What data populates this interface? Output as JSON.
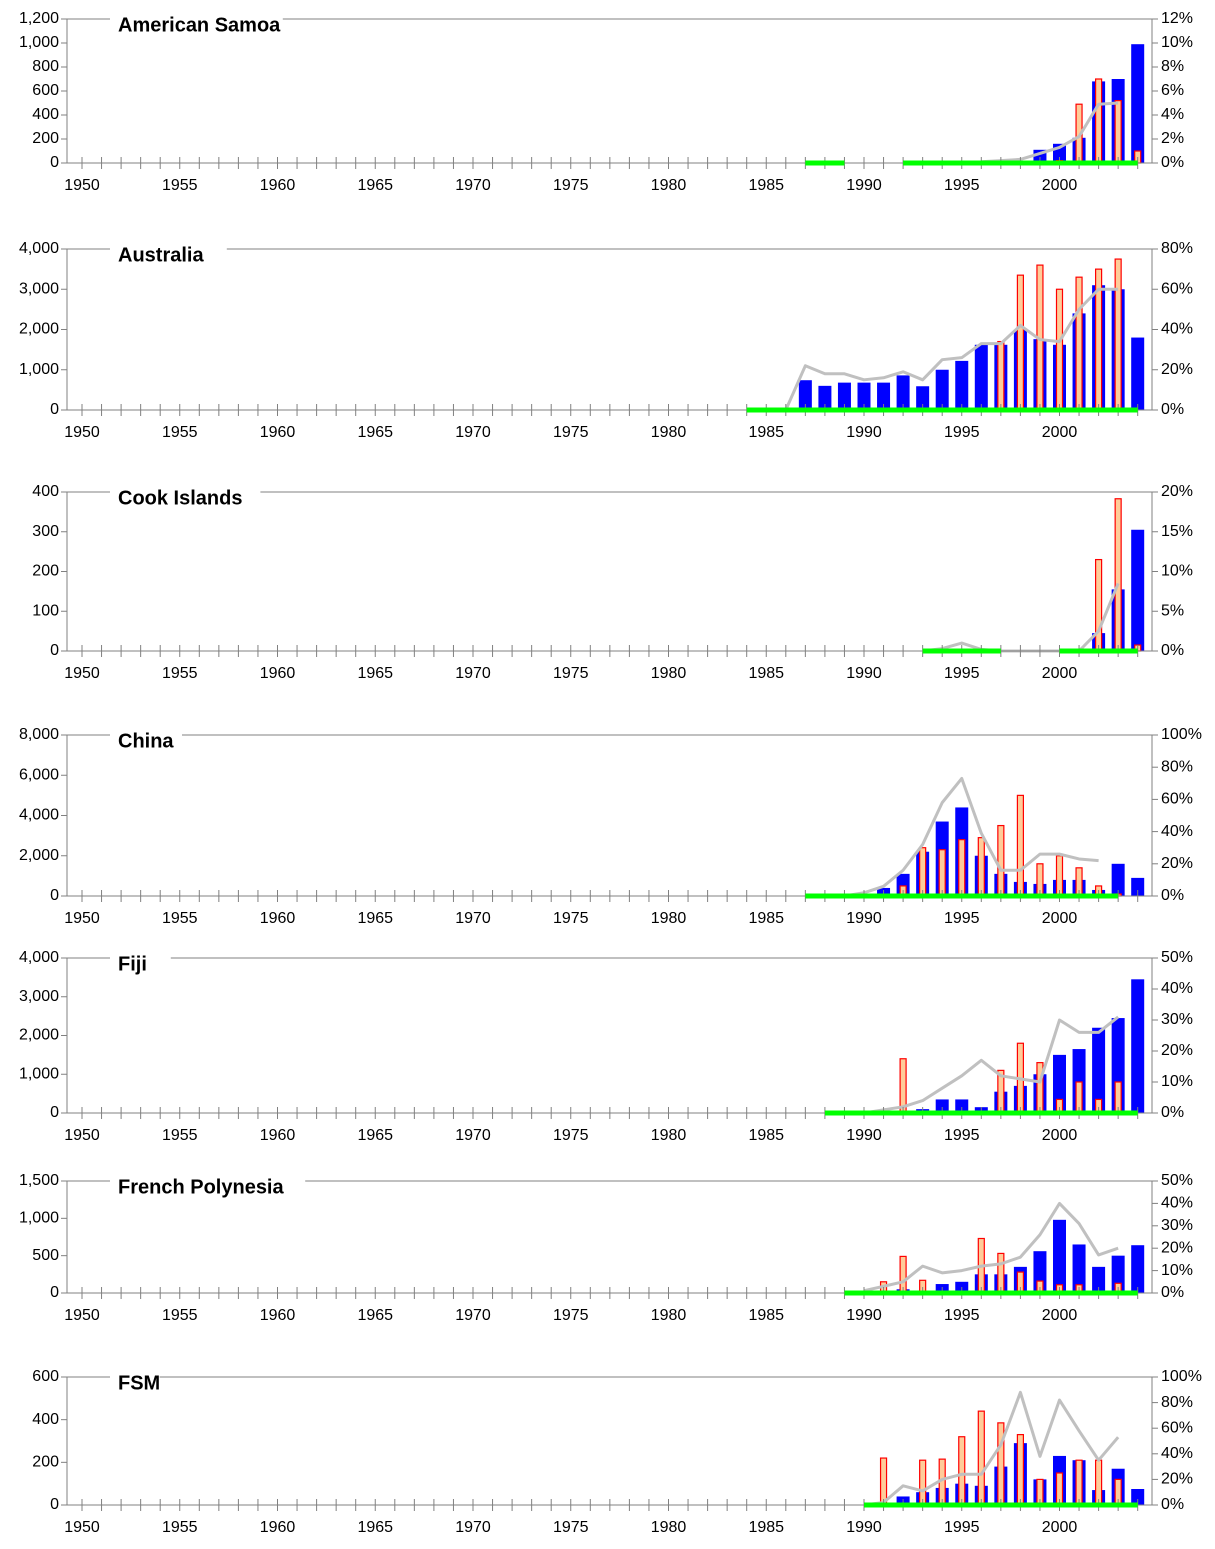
{
  "charts": {
    "x_range": [
      1950,
      2004
    ],
    "x_ticks": [
      1950,
      1955,
      1960,
      1965,
      1970,
      1975,
      1980,
      1985,
      1990,
      1995,
      2000
    ],
    "colors": {
      "blue_bar": "#0000ff",
      "bar_outline_red": "#ff0000",
      "bar_fill_peach": "#ffcc99",
      "line_gray": "#c0c0c0",
      "green_segment": "#00ff00",
      "axis": "#808080"
    }
  },
  "chart_data": [
    {
      "type": "bar",
      "title": "American Samoa",
      "ylim": [
        0,
        1200
      ],
      "y_ticks": [
        "0",
        "200",
        "400",
        "600",
        "800",
        "1,000",
        "1,200"
      ],
      "y2lim": [
        0,
        12
      ],
      "y2_ticks": [
        "0%",
        "2%",
        "4%",
        "6%",
        "8%",
        "10%",
        "12%"
      ],
      "blue_bars": {
        "x": [
          1999,
          2000,
          2001,
          2002,
          2003,
          2004
        ],
        "values": [
          110,
          160,
          210,
          680,
          700,
          990
        ]
      },
      "red_bars": {
        "x": [
          2000,
          2001,
          2002,
          2003,
          2004
        ],
        "values": [
          20,
          490,
          700,
          520,
          100
        ]
      },
      "gray_line_pct": {
        "x": [
          1996,
          1997,
          1998,
          1999,
          2000,
          2001,
          2002,
          2003
        ],
        "values": [
          0.1,
          0.2,
          0.3,
          0.8,
          1.3,
          2.2,
          4.9,
          5.0
        ]
      },
      "green_segments": [
        [
          1987,
          1989
        ],
        [
          1992,
          2004
        ]
      ]
    },
    {
      "type": "bar",
      "title": "Australia",
      "ylim": [
        0,
        4000
      ],
      "y_ticks": [
        "0",
        "1,000",
        "2,000",
        "3,000",
        "4,000"
      ],
      "y2lim": [
        0,
        80
      ],
      "y2_ticks": [
        "0%",
        "20%",
        "40%",
        "60%",
        "80%"
      ],
      "blue_bars": {
        "x": [
          1987,
          1988,
          1989,
          1990,
          1991,
          1992,
          1993,
          1994,
          1995,
          1996,
          1997,
          1998,
          1999,
          2000,
          2001,
          2002,
          2003,
          2004
        ],
        "values": [
          740,
          600,
          680,
          680,
          680,
          860,
          590,
          1000,
          1220,
          1620,
          1620,
          2000,
          1760,
          1620,
          2400,
          3100,
          3000,
          1800
        ]
      },
      "red_bars": {
        "x": [
          1997,
          1998,
          1999,
          2000,
          2001,
          2002,
          2003
        ],
        "values": [
          1700,
          3350,
          3600,
          3000,
          3300,
          3500,
          3750
        ]
      },
      "gray_line_pct": {
        "x": [
          1986,
          1987,
          1988,
          1989,
          1990,
          1991,
          1992,
          1993,
          1994,
          1995,
          1996,
          1997,
          1998,
          1999,
          2000,
          2001,
          2002,
          2003
        ],
        "values": [
          0,
          22,
          18,
          18,
          15,
          16,
          19,
          15,
          25,
          26,
          33,
          33,
          42,
          35,
          34,
          50,
          60,
          60
        ]
      },
      "green_segments": [
        [
          1984,
          2004
        ]
      ]
    },
    {
      "type": "bar",
      "title": "Cook Islands",
      "ylim": [
        0,
        400
      ],
      "y_ticks": [
        "0",
        "100",
        "200",
        "300",
        "400"
      ],
      "y2lim": [
        0,
        20
      ],
      "y2_ticks": [
        "0%",
        "5%",
        "10%",
        "15%",
        "20%"
      ],
      "blue_bars": {
        "x": [
          1995,
          2002,
          2003,
          2004
        ],
        "values": [
          5,
          45,
          155,
          305
        ]
      },
      "red_bars": {
        "x": [
          2002,
          2003,
          2004
        ],
        "values": [
          230,
          383,
          15
        ]
      },
      "gray_line_pct": {
        "x": [
          1993,
          1994,
          1995,
          1996,
          1997,
          2001,
          2002,
          2003
        ],
        "values": [
          0,
          0.3,
          1.0,
          0.2,
          0,
          0,
          2.5,
          8.5
        ]
      },
      "green_segments": [
        [
          1993,
          1997
        ],
        [
          2000,
          2004
        ]
      ]
    },
    {
      "type": "bar",
      "title": "China",
      "ylim": [
        0,
        8000
      ],
      "y_ticks": [
        "0",
        "2,000",
        "4,000",
        "6,000",
        "8,000"
      ],
      "y2lim": [
        0,
        100
      ],
      "y2_ticks": [
        "0%",
        "20%",
        "40%",
        "60%",
        "80%",
        "100%"
      ],
      "blue_bars": {
        "x": [
          1990,
          1991,
          1992,
          1993,
          1994,
          1995,
          1996,
          1997,
          1998,
          1999,
          2000,
          2001,
          2002,
          2003,
          2004
        ],
        "values": [
          100,
          400,
          1100,
          2200,
          3700,
          4400,
          2000,
          1100,
          700,
          600,
          800,
          800,
          300,
          1600,
          900
        ]
      },
      "red_bars": {
        "x": [
          1992,
          1993,
          1994,
          1995,
          1996,
          1997,
          1998,
          1999,
          2000,
          2001,
          2002,
          2003
        ],
        "values": [
          500,
          2400,
          2300,
          2800,
          2900,
          3500,
          5000,
          1600,
          2000,
          1400,
          500,
          100
        ]
      },
      "gray_line_pct": {
        "x": [
          1989,
          1990,
          1991,
          1992,
          1993,
          1994,
          1995,
          1996,
          1997,
          1998,
          1999,
          2000,
          2001,
          2002
        ],
        "values": [
          0,
          2,
          6,
          16,
          32,
          58,
          73,
          39,
          16,
          16,
          26,
          26,
          23,
          22
        ]
      },
      "green_segments": [
        [
          1987,
          2003
        ]
      ]
    },
    {
      "type": "bar",
      "title": "Fiji",
      "ylim": [
        0,
        4000
      ],
      "y_ticks": [
        "0",
        "1,000",
        "2,000",
        "3,000",
        "4,000"
      ],
      "y2lim": [
        0,
        50
      ],
      "y2_ticks": [
        "0%",
        "10%",
        "20%",
        "30%",
        "40%",
        "50%"
      ],
      "blue_bars": {
        "x": [
          1993,
          1994,
          1995,
          1996,
          1997,
          1998,
          1999,
          2000,
          2001,
          2002,
          2003,
          2004
        ],
        "values": [
          100,
          350,
          350,
          150,
          550,
          700,
          1000,
          1500,
          1650,
          2200,
          2450,
          3450
        ]
      },
      "red_bars": {
        "x": [
          1992,
          1997,
          1998,
          1999,
          2000,
          2001,
          2002,
          2003
        ],
        "values": [
          1400,
          1100,
          1800,
          1300,
          350,
          800,
          350,
          800
        ]
      },
      "gray_line_pct": {
        "x": [
          1990,
          1991,
          1992,
          1993,
          1994,
          1995,
          1996,
          1997,
          1998,
          1999,
          2000,
          2001,
          2002,
          2003
        ],
        "values": [
          0,
          1,
          2,
          4,
          8,
          12,
          17,
          12,
          11,
          10,
          30,
          26,
          26,
          31
        ]
      },
      "green_segments": [
        [
          1988,
          2004
        ]
      ]
    },
    {
      "type": "bar",
      "title": "French Polynesia",
      "ylim": [
        0,
        1500
      ],
      "y_ticks": [
        "0",
        "500",
        "1,000",
        "1,500"
      ],
      "y2lim": [
        0,
        50
      ],
      "y2_ticks": [
        "0%",
        "10%",
        "20%",
        "30%",
        "40%",
        "50%"
      ],
      "blue_bars": {
        "x": [
          1992,
          1994,
          1995,
          1996,
          1997,
          1998,
          1999,
          2000,
          2001,
          2002,
          2003,
          2004
        ],
        "values": [
          50,
          120,
          150,
          250,
          250,
          350,
          560,
          980,
          650,
          350,
          500,
          640
        ]
      },
      "red_bars": {
        "x": [
          1991,
          1992,
          1993,
          1996,
          1997,
          1998,
          1999,
          2000,
          2001,
          2003
        ],
        "values": [
          150,
          490,
          170,
          730,
          530,
          280,
          160,
          110,
          110,
          130
        ]
      },
      "gray_line_pct": {
        "x": [
          1990,
          1991,
          1992,
          1993,
          1994,
          1995,
          1996,
          1997,
          1998,
          1999,
          2000,
          2001,
          2002,
          2003
        ],
        "values": [
          1,
          3,
          5,
          12,
          9,
          10,
          12,
          13,
          16,
          26,
          40,
          31,
          17,
          20
        ]
      },
      "green_segments": [
        [
          1989,
          2004
        ]
      ]
    },
    {
      "type": "bar",
      "title": "FSM",
      "ylim": [
        0,
        600
      ],
      "y_ticks": [
        "0",
        "200",
        "400",
        "600"
      ],
      "y2lim": [
        0,
        100
      ],
      "y2_ticks": [
        "0%",
        "20%",
        "40%",
        "60%",
        "80%",
        "100%"
      ],
      "blue_bars": {
        "x": [
          1992,
          1993,
          1994,
          1995,
          1996,
          1997,
          1998,
          1999,
          2000,
          2001,
          2002,
          2003,
          2004
        ],
        "values": [
          40,
          60,
          80,
          100,
          90,
          180,
          290,
          120,
          230,
          210,
          70,
          170,
          75
        ]
      },
      "red_bars": {
        "x": [
          1991,
          1993,
          1994,
          1995,
          1996,
          1997,
          1998,
          1999,
          2000,
          2001,
          2002,
          2003
        ],
        "values": [
          220,
          210,
          215,
          320,
          440,
          385,
          330,
          120,
          150,
          210,
          210,
          120
        ]
      },
      "gray_line_pct": {
        "x": [
          1990,
          1991,
          1992,
          1993,
          1994,
          1995,
          1996,
          1997,
          1998,
          1999,
          2000,
          2001,
          2002,
          2003
        ],
        "values": [
          0,
          2,
          15,
          11,
          20,
          24,
          24,
          47,
          88,
          38,
          82,
          58,
          35,
          53
        ]
      },
      "green_segments": [
        [
          1990,
          2004
        ]
      ]
    }
  ]
}
